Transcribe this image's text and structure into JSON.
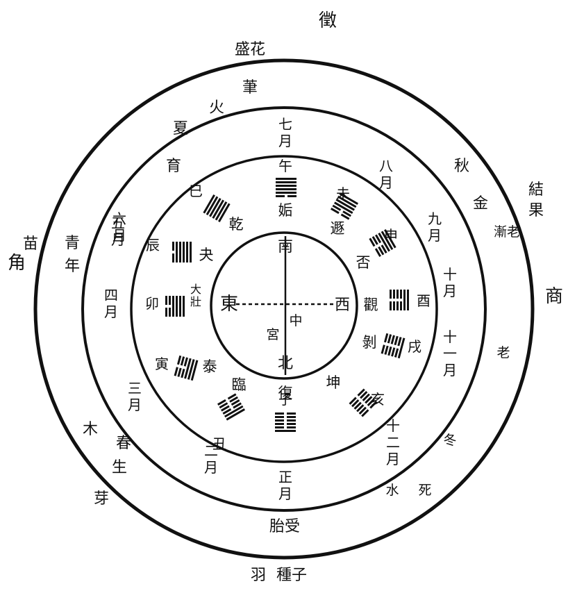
{
  "outer_ring": {
    "top_note": "徵",
    "top": "盛花",
    "left_note": "角",
    "left_top": "苗",
    "left_bottom_a": "木",
    "left_bottom_b": "芽",
    "right_top_a": "結",
    "right_top_b": "果",
    "right_note": "商",
    "bottom_note": "羽",
    "bottom": "種子"
  },
  "middle_ring": {
    "top": "茟",
    "summer": "夏",
    "fire": "火",
    "nurture": "育",
    "youth_a": "青",
    "youth_b": "年",
    "autumn": "秋",
    "metal": "金",
    "gradual_old": "漸老",
    "old": "老",
    "spring": "春",
    "sprout": "生",
    "winter": "冬",
    "water": "水",
    "death": "死",
    "conception": "胎受"
  },
  "months": [
    {
      "name": "month-7",
      "label": "七月"
    },
    {
      "name": "month-8",
      "label": "八月"
    },
    {
      "name": "month-9",
      "label": "九月"
    },
    {
      "name": "month-10",
      "label": "十月"
    },
    {
      "name": "month-11",
      "label": "十一月"
    },
    {
      "name": "month-12",
      "label": "十二月"
    },
    {
      "name": "month-1",
      "label": "正月"
    },
    {
      "name": "month-2",
      "label": "二月"
    },
    {
      "name": "month-3",
      "label": "三月"
    },
    {
      "name": "month-4",
      "label": "四月"
    },
    {
      "name": "month-5",
      "label": "五月"
    },
    {
      "name": "month-6",
      "label": "六月"
    }
  ],
  "branches": [
    "午",
    "未",
    "申",
    "酉",
    "戌",
    "亥",
    "子",
    "丑",
    "寅",
    "卯",
    "辰",
    "巳"
  ],
  "hexagrams": [
    "姤",
    "遯",
    "否",
    "觀",
    "剝",
    "坤",
    "復",
    "臨",
    "泰",
    "大壯",
    "夬",
    "乾"
  ],
  "center": {
    "south": "南",
    "north": "北",
    "east": "東",
    "west": "西",
    "middle": "中",
    "palace": "宮"
  }
}
